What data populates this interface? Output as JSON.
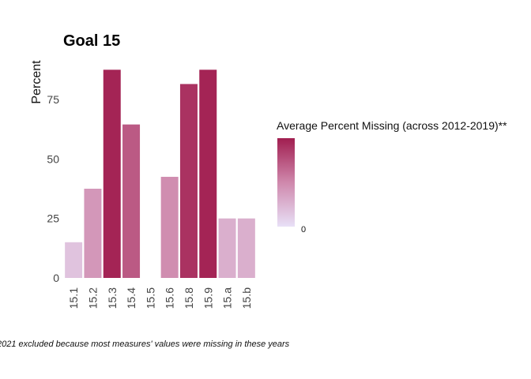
{
  "chart_data": {
    "type": "bar",
    "title": "Goal  15",
    "ylabel": "Percent",
    "xlabel": "",
    "categories": [
      "15.1",
      "15.2",
      "15.3",
      "15.4",
      "15.5",
      "15.6",
      "15.8",
      "15.9",
      "15.a",
      "15.b"
    ],
    "values": [
      15,
      37.5,
      87.5,
      64.5,
      0,
      42.5,
      81.5,
      87.5,
      25,
      25
    ],
    "missing_percent": [
      15,
      37.5,
      87.5,
      64.5,
      0,
      42.5,
      81.5,
      87.5,
      25,
      25
    ],
    "yticks": [
      0,
      25,
      50,
      75
    ],
    "ylim": [
      0,
      88
    ],
    "grid": false,
    "legend": {
      "title": "Average Percent Missing (across 2012-2019)**",
      "tick_label": "0",
      "placement": "right",
      "color_low": "#e8e0f7",
      "color_high": "#a11e50"
    },
    "caption": "2021 excluded because most measures' values were missing in these years"
  }
}
